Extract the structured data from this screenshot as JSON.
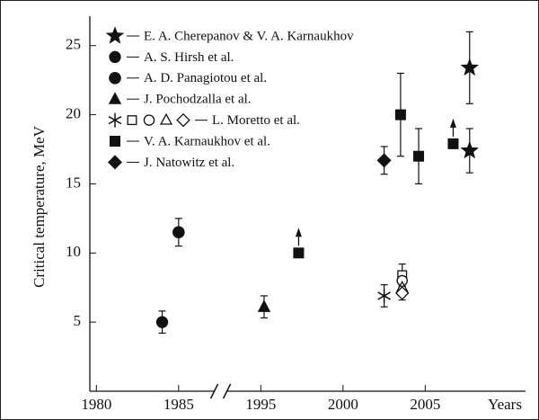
{
  "chart_data": {
    "type": "scatter",
    "y_label": "Critical temperature, MeV",
    "x_label": "Years",
    "xlim": [
      1979.6,
      2011.1
    ],
    "xbreak": [
      1987.5,
      1992.5
    ],
    "xticks": [
      1980,
      1985,
      1995,
      2000,
      2005
    ],
    "ylim": [
      0,
      27
    ],
    "yticks": [
      5,
      10,
      15,
      20,
      25
    ],
    "series": [
      {
        "name": "E. A. Cherepanov & V. A. Karnaukhov",
        "marker": "star",
        "x": [
          2007.7,
          2007.7
        ],
        "values": [
          23.4,
          17.4
        ],
        "errors": [
          2.6,
          1.6
        ]
      },
      {
        "name": "A. S. Hirsh et al.",
        "marker": "half-circle",
        "x": [
          1984
        ],
        "values": [
          5
        ],
        "errors": [
          0.8
        ]
      },
      {
        "name": "A. D. Panagiotou et al.",
        "marker": "circle",
        "x": [
          1985
        ],
        "values": [
          11.5
        ],
        "errors": [
          1
        ]
      },
      {
        "name": "J. Pochodzalla et al.",
        "marker": "triangle",
        "x": [
          1995.2
        ],
        "values": [
          6.1
        ],
        "errors": [
          0.8
        ]
      },
      {
        "name": "L. Moretto et al.",
        "markers": [
          "asterisk",
          "square-open",
          "circle-open",
          "triangle-open",
          "diamond-open"
        ],
        "x": [
          2002.5,
          2003.6,
          2003.6,
          2003.6,
          2003.6
        ],
        "values": [
          6.9,
          8.4,
          8.0,
          7.5,
          7.1
        ],
        "errors": [
          0.8,
          0.8,
          null,
          null,
          0.5
        ]
      },
      {
        "name": "V. A. Karnaukhov et al.",
        "marker": "square",
        "x": [
          1997.3,
          2003.5,
          2004.6,
          2006.7
        ],
        "values": [
          10,
          20,
          17,
          17.9
        ],
        "errors": [
          null,
          3,
          2,
          null
        ],
        "arrows": [
          true,
          false,
          false,
          true
        ]
      },
      {
        "name": "J. Natowitz et al.",
        "marker": "diamond",
        "x": [
          2002.5
        ],
        "values": [
          16.7
        ],
        "errors": [
          1
        ]
      }
    ]
  }
}
